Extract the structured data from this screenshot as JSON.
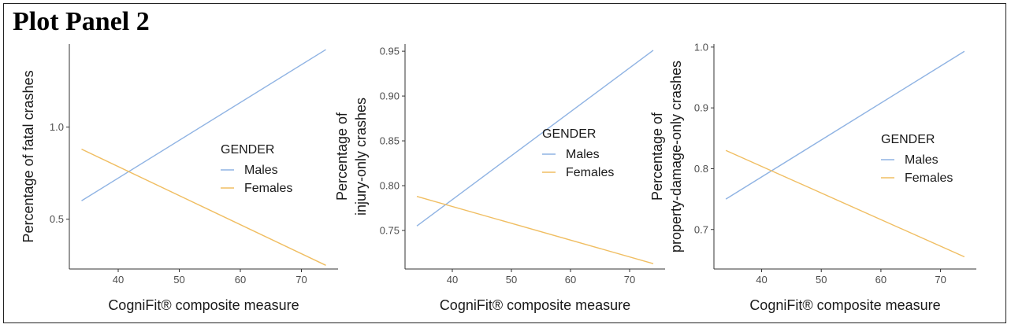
{
  "panel_title": "Plot Panel 2",
  "colors": {
    "males": "#8fb3e3",
    "females": "#f0be62",
    "axis": "#333333"
  },
  "chart_data": [
    {
      "type": "line",
      "xlabel": "CogniFit® composite measure",
      "ylabel": [
        "Percentage of fatal crashes"
      ],
      "xlim": [
        32,
        76
      ],
      "ylim": [
        0.23,
        1.45
      ],
      "xticks": [
        40,
        50,
        60,
        70
      ],
      "yticks": [
        0.5,
        1.0
      ],
      "ytick_labels": [
        "0.5",
        "1.0"
      ],
      "legend_title": "GENDER",
      "series": [
        {
          "name": "Males",
          "x": [
            34,
            74
          ],
          "y": [
            0.6,
            1.42
          ]
        },
        {
          "name": "Females",
          "x": [
            34,
            74
          ],
          "y": [
            0.88,
            0.25
          ]
        }
      ]
    },
    {
      "type": "line",
      "xlabel": "CogniFit® composite measure",
      "ylabel": [
        "Percentage of",
        "injury-only crashes"
      ],
      "xlim": [
        32,
        76
      ],
      "ylim": [
        0.707,
        0.958
      ],
      "xticks": [
        40,
        50,
        60,
        70
      ],
      "yticks": [
        0.75,
        0.8,
        0.85,
        0.9,
        0.95
      ],
      "ytick_labels": [
        "0.75",
        "0.80",
        "0.85",
        "0.90",
        "0.95"
      ],
      "legend_title": "GENDER",
      "series": [
        {
          "name": "Males",
          "x": [
            34,
            74
          ],
          "y": [
            0.755,
            0.951
          ]
        },
        {
          "name": "Females",
          "x": [
            34,
            74
          ],
          "y": [
            0.788,
            0.713
          ]
        }
      ]
    },
    {
      "type": "line",
      "xlabel": "CogniFit® composite measure",
      "ylabel": [
        "Percentage of",
        "property-damage-only crashes"
      ],
      "xlim": [
        32,
        76
      ],
      "ylim": [
        0.635,
        1.005
      ],
      "xticks": [
        40,
        50,
        60,
        70
      ],
      "yticks": [
        0.7,
        0.8,
        0.9,
        1.0
      ],
      "ytick_labels": [
        "0.7",
        "0.8",
        "0.9",
        "1.0"
      ],
      "legend_title": "GENDER",
      "series": [
        {
          "name": "Males",
          "x": [
            34,
            74
          ],
          "y": [
            0.75,
            0.993
          ]
        },
        {
          "name": "Females",
          "x": [
            34,
            74
          ],
          "y": [
            0.83,
            0.655
          ]
        }
      ]
    }
  ]
}
